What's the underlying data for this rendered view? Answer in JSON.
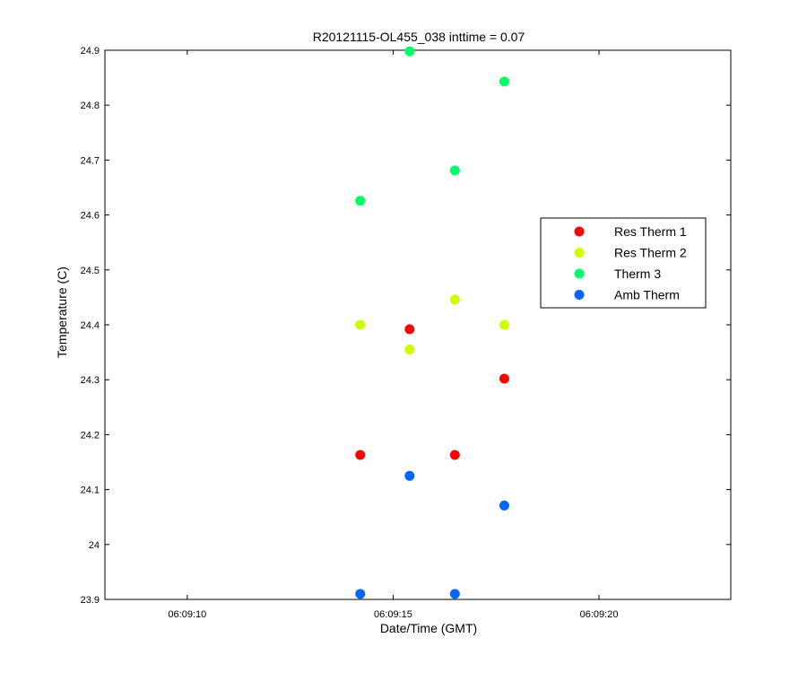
{
  "chart_data": {
    "type": "scatter",
    "title": "R20121115-OL455_038 inttime = 0.07",
    "xlabel": "Date/Time (GMT)",
    "ylabel": "Temperature (C)",
    "xlim": [
      "06:09:08",
      "06:09:23.2"
    ],
    "ylim": [
      23.9,
      24.9
    ],
    "xticks": [
      "06:09:10",
      "06:09:15",
      "06:09:20"
    ],
    "yticks": [
      "23.9",
      "24",
      "24.1",
      "24.2",
      "24.3",
      "24.4",
      "24.5",
      "24.6",
      "24.7",
      "24.8",
      "24.9"
    ],
    "x": [
      "06:09:14.2",
      "06:09:15.4",
      "06:09:16.5",
      "06:09:17.7"
    ],
    "legend_position": "right",
    "grid": false,
    "series": [
      {
        "name": "Res Therm 1",
        "color": "#ff0000",
        "values": [
          24.163,
          24.392,
          24.163,
          24.302
        ]
      },
      {
        "name": "Res Therm 2",
        "color": "#ccff00",
        "values": [
          24.4,
          24.355,
          24.446,
          24.4
        ]
      },
      {
        "name": "Therm 3",
        "color": "#00ff66",
        "values": [
          24.626,
          24.898,
          24.681,
          24.843
        ]
      },
      {
        "name": "Amb Therm",
        "color": "#0066ff",
        "values": [
          23.91,
          24.125,
          23.91,
          24.071
        ]
      }
    ]
  }
}
